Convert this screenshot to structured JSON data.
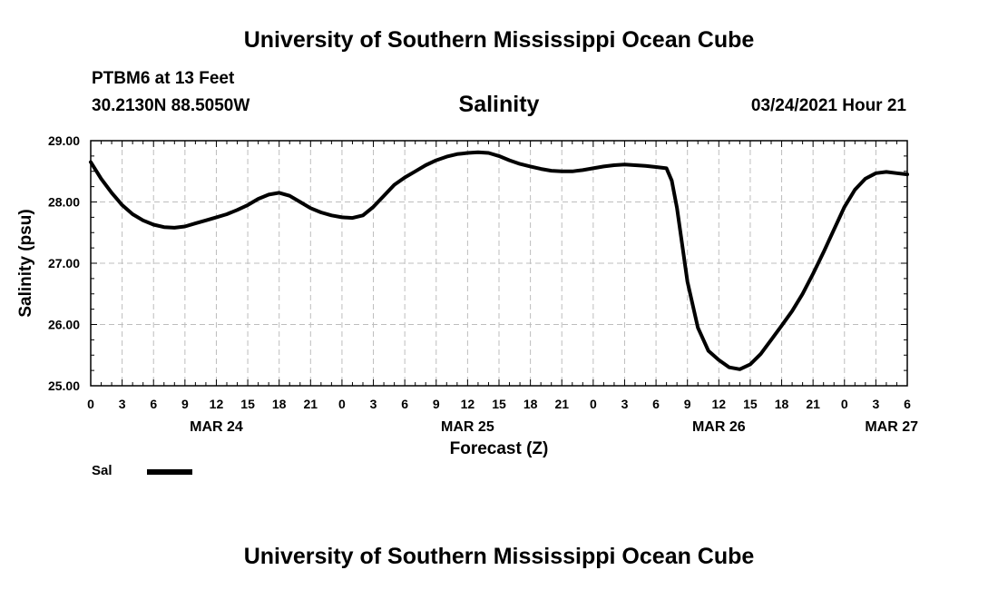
{
  "header": {
    "top_title": "University of Southern Mississippi Ocean Cube",
    "station": "PTBM6 at 13 Feet",
    "coords": "30.2130N 88.5050W",
    "timestamp": "03/24/2021 Hour 21",
    "bottom_title": "University of Southern Mississippi Ocean Cube"
  },
  "chart_data": {
    "type": "line",
    "title": "Salinity",
    "xlabel": "Forecast (Z)",
    "ylabel": "Salinity (psu)",
    "ylim": [
      25,
      29
    ],
    "xlim": [
      0,
      78
    ],
    "x_unit": "hours from MAR 24 00Z",
    "x_ticks": [
      0,
      3,
      6,
      9,
      12,
      15,
      18,
      21,
      24,
      27,
      30,
      33,
      36,
      39,
      42,
      45,
      48,
      51,
      54,
      57,
      60,
      63,
      66,
      69,
      72,
      75,
      78
    ],
    "x_tick_labels": [
      "0",
      "3",
      "6",
      "9",
      "12",
      "15",
      "18",
      "21",
      "0",
      "3",
      "6",
      "9",
      "12",
      "15",
      "18",
      "21",
      "0",
      "3",
      "6",
      "9",
      "12",
      "15",
      "18",
      "21",
      "0",
      "3",
      "6"
    ],
    "y_ticks": [
      25,
      26,
      27,
      28,
      29
    ],
    "y_tick_labels": [
      "25.00",
      "26.00",
      "27.00",
      "28.00",
      "29.00"
    ],
    "day_labels": [
      {
        "label": "MAR 24",
        "x": 12
      },
      {
        "label": "MAR 25",
        "x": 36
      },
      {
        "label": "MAR 26",
        "x": 60
      },
      {
        "label": "MAR 27",
        "x": 76.5
      }
    ],
    "grid": true,
    "legend": [
      {
        "name": "Sal",
        "color": "#000000"
      }
    ],
    "series": [
      {
        "name": "Sal",
        "color": "#000000",
        "x": [
          0,
          1,
          2,
          3,
          4,
          5,
          6,
          7,
          8,
          9,
          10,
          11,
          12,
          13,
          14,
          15,
          16,
          17,
          18,
          19,
          20,
          21,
          22,
          23,
          24,
          25,
          26,
          27,
          28,
          29,
          30,
          31,
          32,
          33,
          34,
          35,
          36,
          37,
          38,
          39,
          40,
          41,
          42,
          43,
          44,
          45,
          46,
          47,
          48,
          49,
          50,
          51,
          52,
          53,
          54,
          55,
          55.5,
          56,
          57,
          58,
          59,
          60,
          61,
          62,
          63,
          64,
          65,
          66,
          67,
          68,
          69,
          70,
          71,
          72,
          73,
          74,
          75,
          76,
          77,
          78
        ],
        "values": [
          28.65,
          28.38,
          28.15,
          27.95,
          27.8,
          27.7,
          27.63,
          27.59,
          27.58,
          27.6,
          27.65,
          27.7,
          27.75,
          27.8,
          27.87,
          27.95,
          28.05,
          28.12,
          28.15,
          28.1,
          28.0,
          27.9,
          27.83,
          27.78,
          27.75,
          27.74,
          27.78,
          27.92,
          28.1,
          28.28,
          28.4,
          28.5,
          28.6,
          28.68,
          28.74,
          28.78,
          28.8,
          28.81,
          28.8,
          28.75,
          28.68,
          28.62,
          28.58,
          28.54,
          28.51,
          28.5,
          28.5,
          28.52,
          28.55,
          28.58,
          28.6,
          28.61,
          28.6,
          28.59,
          28.57,
          28.55,
          28.35,
          27.9,
          26.7,
          25.95,
          25.57,
          25.42,
          25.3,
          25.27,
          25.35,
          25.52,
          25.75,
          25.98,
          26.22,
          26.5,
          26.83,
          27.18,
          27.55,
          27.92,
          28.2,
          28.38,
          28.47,
          28.49,
          28.47,
          28.45
        ]
      }
    ]
  }
}
